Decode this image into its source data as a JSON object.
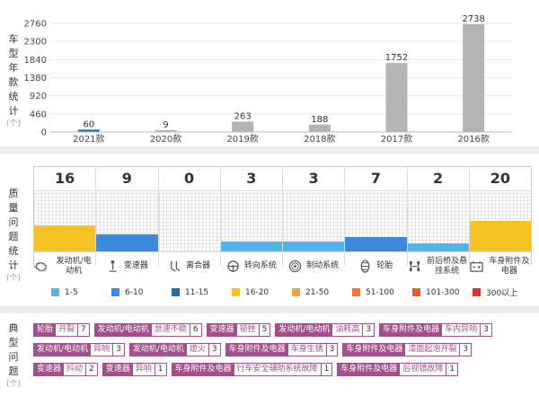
{
  "section_year": {
    "label_chars": [
      "车",
      "型",
      "年",
      "款",
      "统",
      "计"
    ],
    "label_sub": "(个)"
  },
  "chart_data": {
    "type": "bar",
    "categories": [
      "2021款",
      "2020款",
      "2019款",
      "2018款",
      "2017款",
      "2016款"
    ],
    "values": [
      60,
      9,
      263,
      188,
      1752,
      2738
    ],
    "yticks": [
      0,
      460,
      920,
      1380,
      1840,
      2300,
      2760
    ],
    "ylim": [
      0,
      2760
    ],
    "colors": {
      "default": "#b3b3b3",
      "highlight": "#1a6fb8"
    },
    "highlight_index": 0,
    "title": "",
    "xlabel": "",
    "ylabel": "车型年款统计(个)"
  },
  "section_quality": {
    "label_chars": [
      "质",
      "量",
      "问",
      "题",
      "统",
      "计"
    ],
    "label_sub": "(个)",
    "categories": [
      {
        "name": "发动机/电动机",
        "count": "16",
        "level": 16,
        "color": "#f5c324",
        "icon": "engine-icon"
      },
      {
        "name": "变速器",
        "count": "9",
        "level": 9,
        "color": "#3c8be0",
        "icon": "gear-shift-icon"
      },
      {
        "name": "离合器",
        "count": "0",
        "level": 0,
        "color": "#3c8be0",
        "icon": "clutch-pedal-icon"
      },
      {
        "name": "转向系统",
        "count": "3",
        "level": 3,
        "color": "#4db4ee",
        "icon": "steering-wheel-icon"
      },
      {
        "name": "制动系统",
        "count": "3",
        "level": 3,
        "color": "#4db4ee",
        "icon": "brake-disc-icon"
      },
      {
        "name": "轮胎",
        "count": "7",
        "level": 7,
        "color": "#3c8be0",
        "icon": "tire-icon"
      },
      {
        "name": "前后桥及悬挂系统",
        "count": "2",
        "level": 2,
        "color": "#4db4ee",
        "icon": "suspension-icon"
      },
      {
        "name": "车身附件及电器",
        "count": "20",
        "level": 20,
        "color": "#f5c324",
        "icon": "battery-icon"
      }
    ],
    "legend": [
      {
        "label": "1-5",
        "color": "#4db4ee"
      },
      {
        "label": "6-10",
        "color": "#3c8be0"
      },
      {
        "label": "11-15",
        "color": "#1a6fb8"
      },
      {
        "label": "16-20",
        "color": "#f5c324"
      },
      {
        "label": "21-50",
        "color": "#f5a23c"
      },
      {
        "label": "51-100",
        "color": "#f07a2a"
      },
      {
        "label": "101-300",
        "color": "#eb5a1e"
      },
      {
        "label": "300以上",
        "color": "#e0302a"
      }
    ]
  },
  "section_typical": {
    "label_chars": [
      "典",
      "型",
      "问",
      "题"
    ],
    "label_sub": "(个)",
    "tags": [
      {
        "category": "轮胎",
        "issue": "开裂",
        "count": "7"
      },
      {
        "category": "发动机/电动机",
        "issue": "怠速不稳",
        "count": "6"
      },
      {
        "category": "变速器",
        "issue": "顿挫",
        "count": "5"
      },
      {
        "category": "发动机/电动机",
        "issue": "油耗高",
        "count": "3"
      },
      {
        "category": "车身附件及电器",
        "issue": "车内异响",
        "count": "3"
      },
      {
        "category": "发动机/电动机",
        "issue": "异响",
        "count": "3"
      },
      {
        "category": "发动机/电动机",
        "issue": "熄火",
        "count": "3"
      },
      {
        "category": "车身附件及电器",
        "issue": "车身生锈",
        "count": "3"
      },
      {
        "category": "车身附件及电器",
        "issue": "漆面起泡开裂",
        "count": "3"
      },
      {
        "category": "变速器",
        "issue": "抖动",
        "count": "2"
      },
      {
        "category": "变速器",
        "issue": "异响",
        "count": "1"
      },
      {
        "category": "车身附件及电器",
        "issue": "行车安全辅助系统故障",
        "count": "1"
      },
      {
        "category": "车身附件及电器",
        "issue": "后视镜故障",
        "count": "1"
      }
    ]
  }
}
